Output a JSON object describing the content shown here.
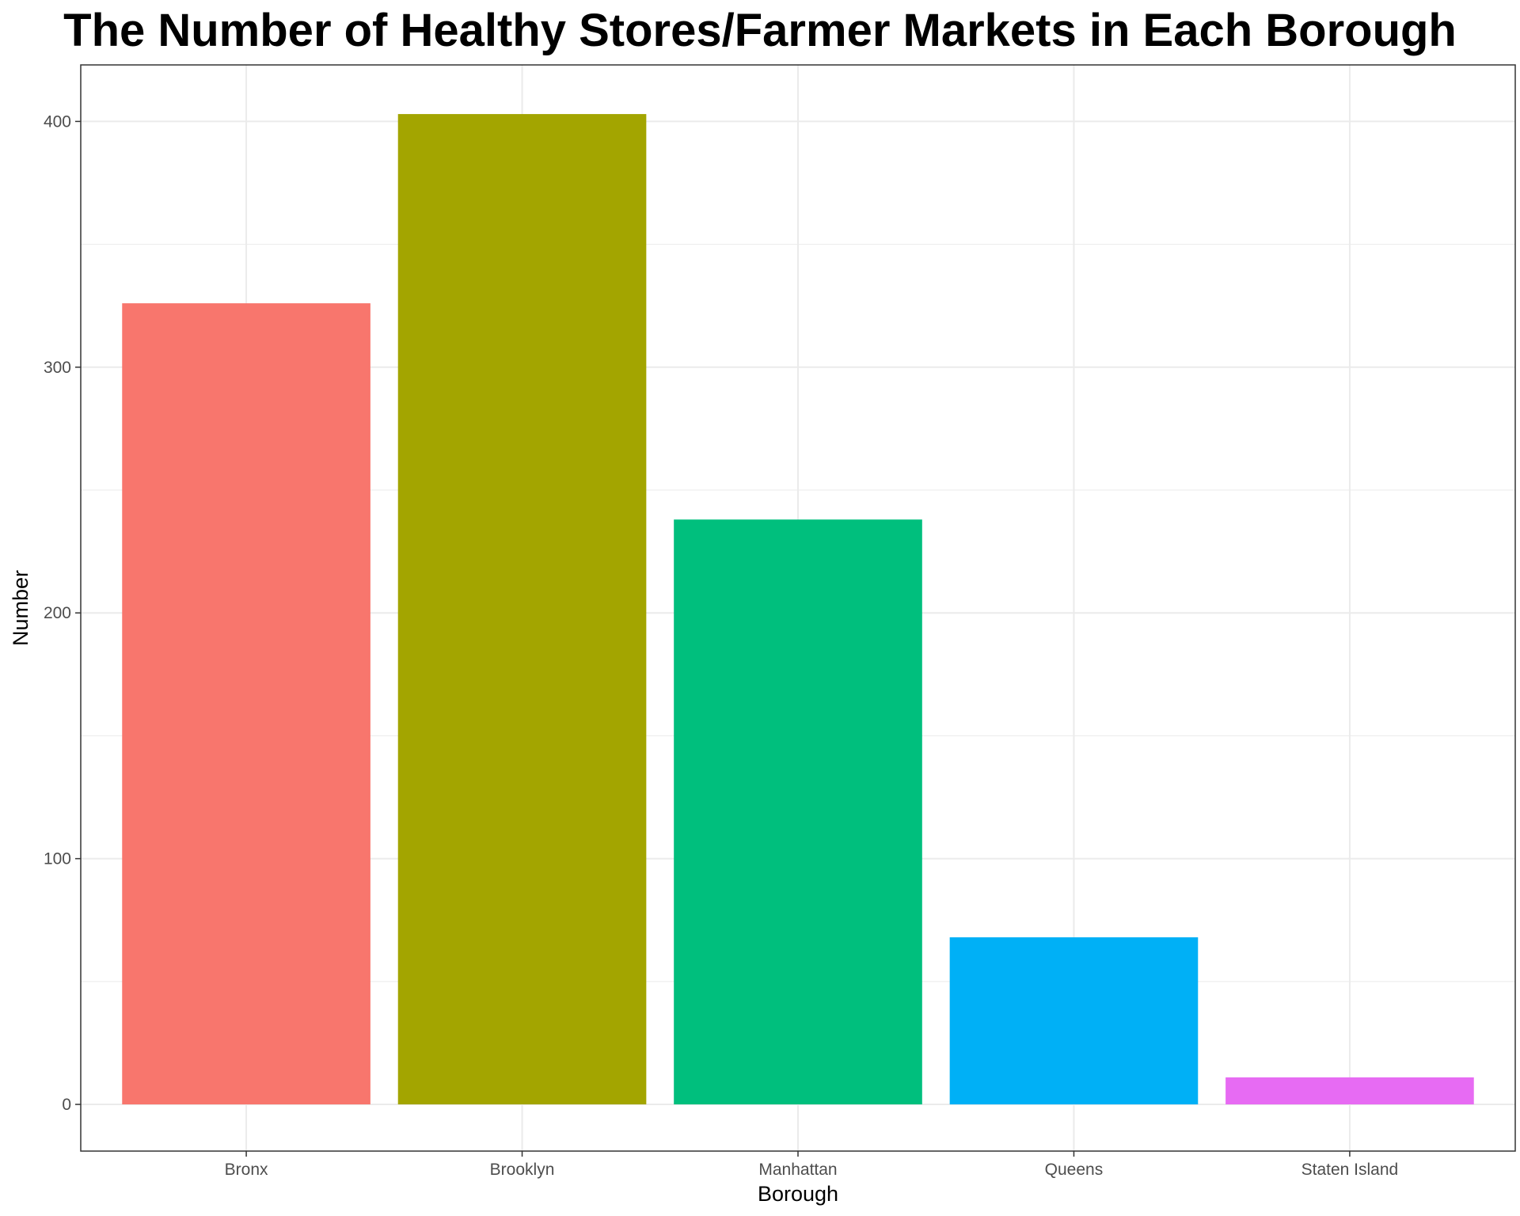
{
  "chart_data": {
    "type": "bar",
    "title": "The Number of Healthy Stores/Farmer Markets in Each Borough",
    "xlabel": "Borough",
    "ylabel": "Number",
    "categories": [
      "Bronx",
      "Brooklyn",
      "Manhattan",
      "Queens",
      "Staten Island"
    ],
    "values": [
      326,
      403,
      238,
      68,
      11
    ],
    "colors": [
      "#F8766D",
      "#A3A500",
      "#00BF7D",
      "#00B0F6",
      "#E76BF3"
    ],
    "yticks": [
      0,
      100,
      200,
      300,
      400
    ],
    "ylim": [
      -19,
      423
    ],
    "grid": true,
    "legend": "none"
  }
}
